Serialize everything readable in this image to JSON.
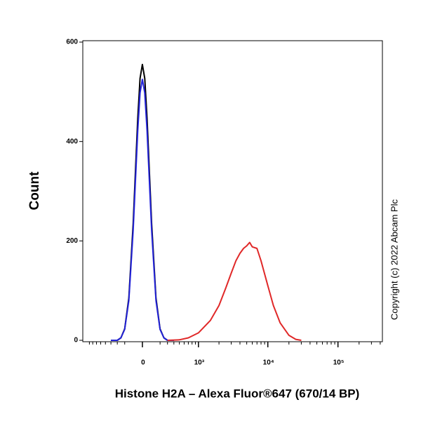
{
  "chart_data": {
    "type": "line",
    "xlabel": "Histone H2A – Alexa Fluor®647 (670/14 BP)",
    "ylabel": "Count",
    "annotation": "Copyright (c) 2022 Abcam Plc",
    "xscale": "biexponential",
    "xlim": [
      -1130,
      430000
    ],
    "xticks": [
      0,
      {
        "value": 1000,
        "label": "10³"
      },
      {
        "value": 10000,
        "label": "10⁴"
      },
      {
        "value": 100000,
        "label": "10⁵"
      }
    ],
    "ylim": [
      0,
      600
    ],
    "yticks": [
      0,
      200,
      400,
      600
    ],
    "series": [
      {
        "color": "#000000",
        "x": [
          -400,
          -300,
          -250,
          -200,
          -150,
          -100,
          -50,
          -25,
          0,
          25,
          50,
          100,
          150,
          200,
          250,
          300,
          400
        ],
        "values": [
          0,
          0,
          5,
          23,
          85,
          235,
          446,
          527,
          555,
          527,
          446,
          235,
          85,
          23,
          5,
          0,
          0
        ]
      },
      {
        "color": "#2323d8",
        "x": [
          -400,
          -300,
          -250,
          -200,
          -150,
          -100,
          -50,
          -25,
          0,
          25,
          50,
          100,
          150,
          200,
          250,
          300,
          400
        ],
        "values": [
          0,
          0,
          5,
          22,
          80,
          222,
          422,
          498,
          525,
          498,
          422,
          222,
          80,
          22,
          5,
          0,
          0
        ]
      },
      {
        "color": "#e02828",
        "x": [
          300,
          500,
          700,
          1000,
          1500,
          2000,
          2500,
          3000,
          3500,
          4000,
          4500,
          5000,
          5500,
          6000,
          7000,
          8000,
          10000,
          12000,
          15000,
          20000,
          25000,
          30000
        ],
        "values": [
          0,
          1,
          5,
          15,
          40,
          70,
          105,
          135,
          160,
          175,
          185,
          190,
          197,
          188,
          185,
          160,
          110,
          70,
          35,
          10,
          2,
          0
        ]
      }
    ]
  }
}
